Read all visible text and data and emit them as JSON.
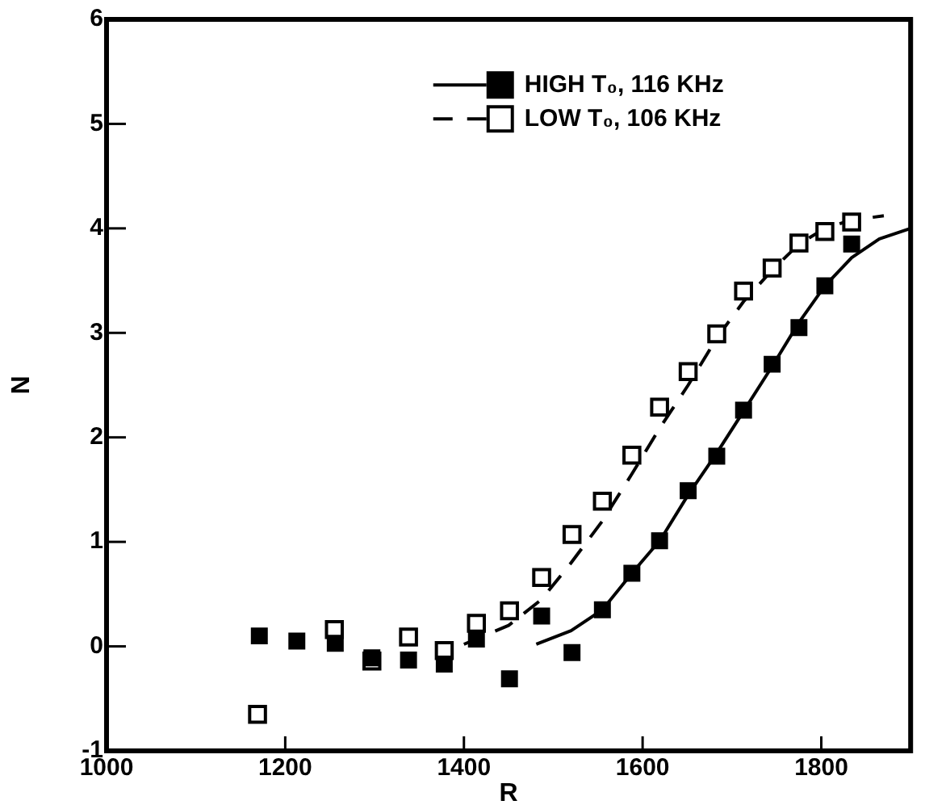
{
  "chart_data": {
    "type": "scatter",
    "xlabel": "R",
    "ylabel": "N",
    "xlim": [
      1000,
      1900
    ],
    "xticks": [
      1000,
      1200,
      1400,
      1600,
      1800
    ],
    "ylim": [
      -1,
      6
    ],
    "yticks": [
      -1,
      0,
      1,
      2,
      3,
      4,
      5,
      6
    ],
    "grid": false,
    "legend": "top",
    "marker": "square",
    "series": [
      {
        "name": "HIGH T₀, 116 KHz",
        "color": "#000000",
        "x": [
          1171,
          1213,
          1256,
          1297,
          1338,
          1378,
          1414,
          1451,
          1487,
          1521,
          1555,
          1588,
          1619,
          1651,
          1683,
          1713,
          1745,
          1775,
          1804,
          1834
        ],
        "values": [
          0.1,
          0.05,
          0.03,
          -0.11,
          -0.13,
          -0.17,
          0.07,
          -0.31,
          0.29,
          -0.06,
          0.35,
          0.7,
          1.01,
          1.49,
          1.82,
          2.26,
          2.7,
          3.05,
          3.45,
          3.85
        ]
      },
      {
        "type": "line",
        "color": "#000000",
        "line_style": "solid",
        "marker": "none",
        "x": [
          1481,
          1520,
          1555,
          1588,
          1620,
          1651,
          1683,
          1713,
          1745,
          1775,
          1804,
          1834,
          1865,
          1900
        ],
        "values": [
          0.02,
          0.15,
          0.35,
          0.7,
          1.02,
          1.45,
          1.85,
          2.25,
          2.68,
          3.1,
          3.45,
          3.72,
          3.9,
          4.0
        ]
      },
      {
        "name": "LOW T₀, 106 KHz",
        "color": "#ffffff",
        "x": [
          1169,
          1255,
          1297,
          1338,
          1378,
          1414,
          1451,
          1487,
          1521,
          1555,
          1588,
          1619,
          1651,
          1683,
          1713,
          1745,
          1775,
          1804,
          1834
        ],
        "values": [
          -0.65,
          0.16,
          -0.14,
          0.09,
          -0.04,
          0.22,
          0.34,
          0.66,
          1.07,
          1.39,
          1.83,
          2.29,
          2.63,
          2.99,
          3.4,
          3.62,
          3.86,
          3.97,
          4.06
        ]
      },
      {
        "type": "line",
        "color": "#000000",
        "line_style": "dashed",
        "marker": "none",
        "x": [
          1400,
          1450,
          1487,
          1520,
          1555,
          1588,
          1620,
          1651,
          1683,
          1713,
          1745,
          1775,
          1804,
          1834,
          1870
        ],
        "values": [
          0.02,
          0.2,
          0.45,
          0.8,
          1.2,
          1.65,
          2.1,
          2.5,
          2.95,
          3.3,
          3.6,
          3.85,
          4.0,
          4.08,
          4.12
        ]
      }
    ]
  }
}
